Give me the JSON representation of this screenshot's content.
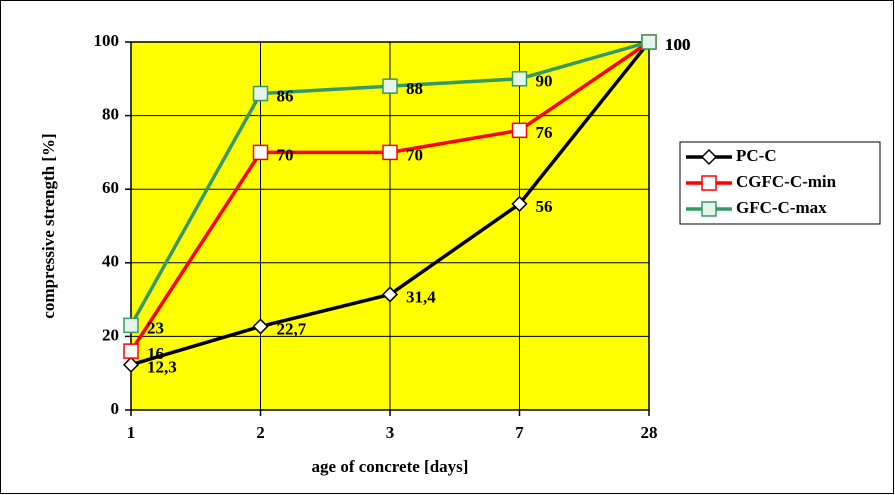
{
  "chart_data": {
    "type": "line",
    "xlabel": "age of concrete [days]",
    "ylabel": "compressive strength [%]",
    "categories": [
      "1",
      "2",
      "3",
      "7",
      "28"
    ],
    "ylim": [
      0,
      100
    ],
    "yticks": [
      0,
      20,
      40,
      60,
      80,
      100
    ],
    "grid": true,
    "background": "#ffff00",
    "legend": "right",
    "series": [
      {
        "name": "PC-C",
        "color": "#000000",
        "marker": "diamond",
        "marker_fill": "#ffffff",
        "values": [
          12.3,
          22.7,
          31.4,
          56,
          100
        ],
        "value_labels": [
          "12,3",
          "22,7",
          "31,4",
          "56",
          "100"
        ]
      },
      {
        "name": "CGFC-C-min",
        "color": "#ff0000",
        "marker": "square",
        "marker_fill": "#ffffff",
        "values": [
          16,
          70,
          70,
          76,
          100
        ]
      },
      {
        "name": "GFC-C-max",
        "color": "#339966",
        "marker": "square",
        "marker_fill": "#e6f5ea",
        "values": [
          23,
          86,
          88,
          90,
          100
        ]
      }
    ]
  }
}
